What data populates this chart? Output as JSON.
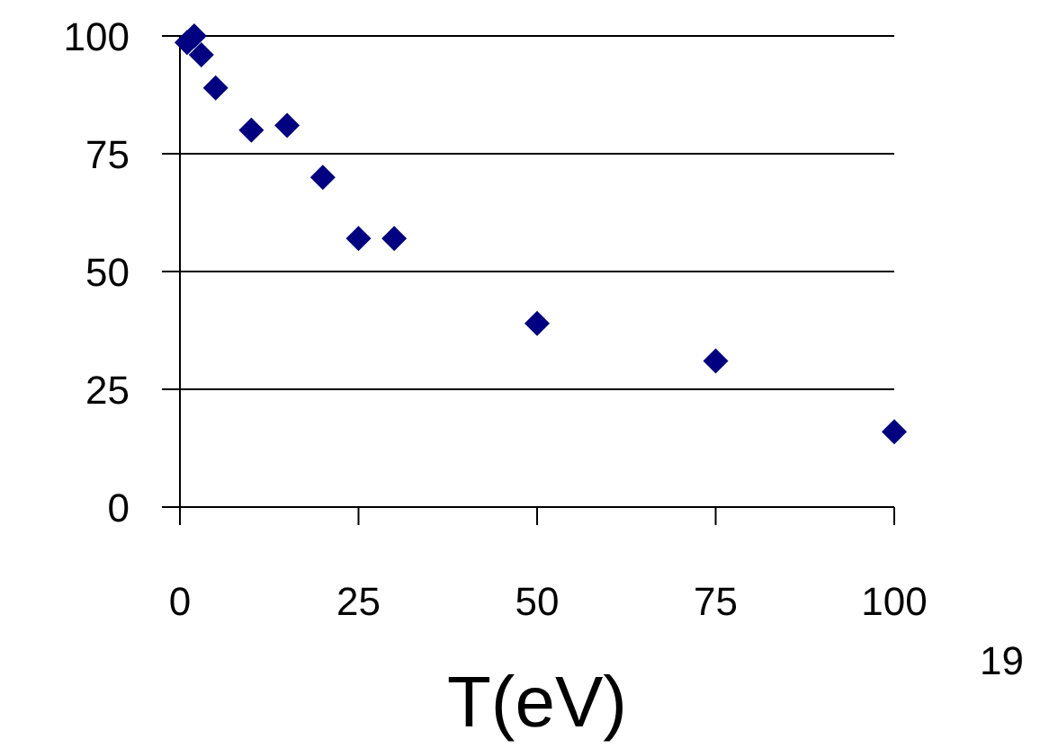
{
  "chart_data": {
    "type": "scatter",
    "xlabel": "T(eV)",
    "x": [
      1,
      2,
      3,
      5,
      10,
      15,
      20,
      25,
      30,
      50,
      75,
      100
    ],
    "series": [
      {
        "color": "#000080",
        "values": [
          98.6,
          100,
          96,
          89,
          80,
          81,
          70,
          57,
          57,
          39,
          31,
          16
        ]
      }
    ],
    "xlim": [
      0,
      100
    ],
    "ylim": [
      0,
      100
    ],
    "xticks": [
      0,
      25,
      50,
      75,
      100
    ],
    "yticks": [
      0,
      25,
      50,
      75,
      100
    ],
    "grid": "y",
    "marker": "diamond",
    "annotations": [
      "19"
    ]
  }
}
